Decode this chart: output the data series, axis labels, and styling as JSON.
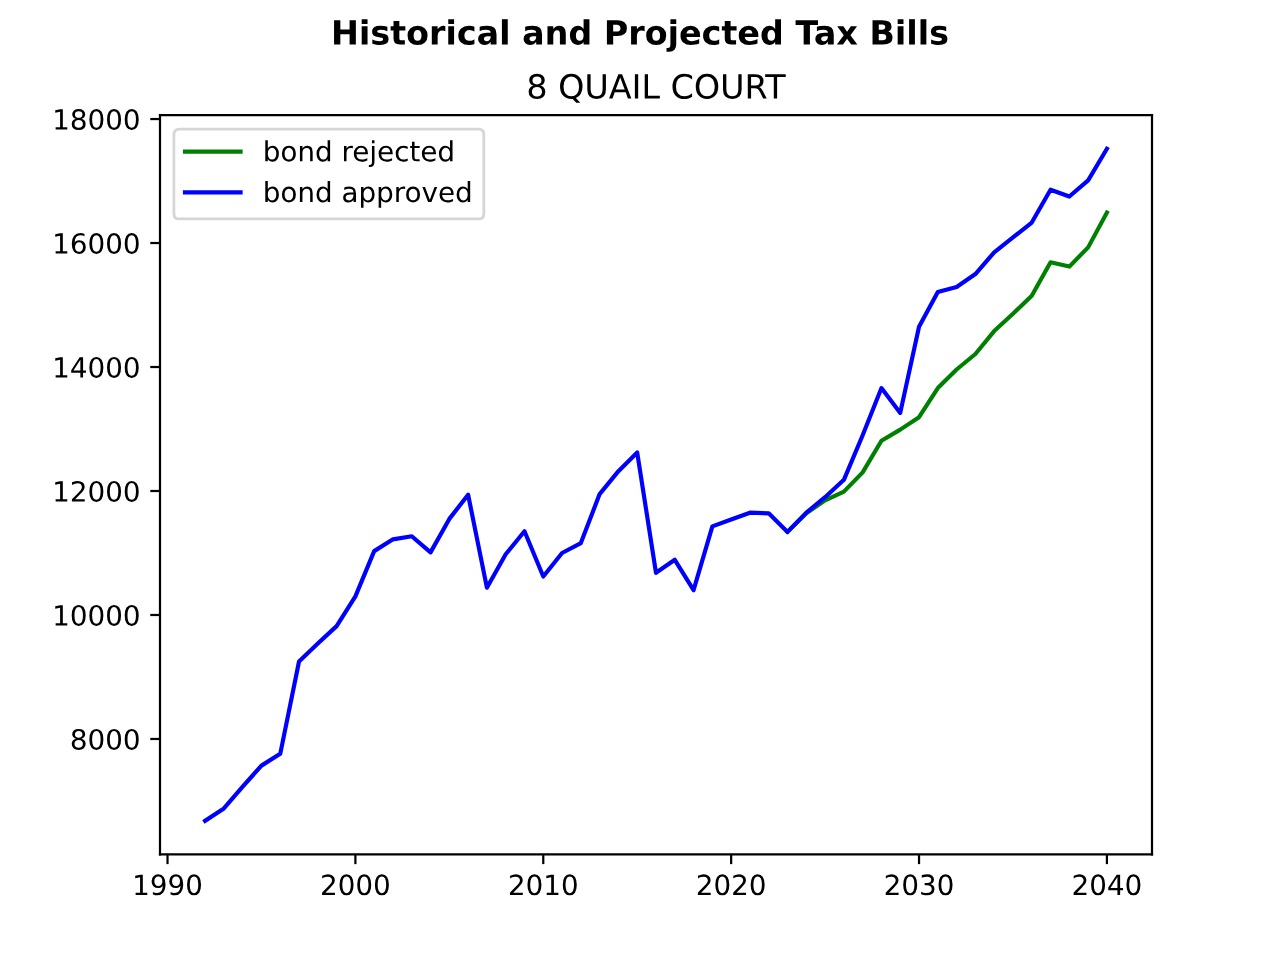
{
  "chart_data": {
    "type": "line",
    "title": "Historical and Projected Tax Bills",
    "subtitle": "8 QUAIL COURT",
    "x": [
      1992,
      1993,
      1994,
      1995,
      1996,
      1997,
      1998,
      1999,
      2000,
      2001,
      2002,
      2003,
      2004,
      2005,
      2006,
      2007,
      2008,
      2009,
      2010,
      2011,
      2012,
      2013,
      2014,
      2015,
      2016,
      2017,
      2018,
      2019,
      2020,
      2021,
      2022,
      2023,
      2024,
      2025,
      2026,
      2027,
      2028,
      2029,
      2030,
      2031,
      2032,
      2033,
      2034,
      2035,
      2036,
      2037,
      2038,
      2039,
      2040
    ],
    "series": [
      {
        "name": "bond rejected",
        "color": "#008000",
        "values": [
          null,
          null,
          null,
          null,
          null,
          null,
          null,
          null,
          null,
          null,
          null,
          null,
          null,
          null,
          null,
          null,
          null,
          null,
          null,
          null,
          null,
          null,
          null,
          null,
          null,
          null,
          null,
          null,
          null,
          null,
          null,
          11340,
          11640,
          11850,
          11990,
          12300,
          12810,
          12990,
          13190,
          13660,
          13960,
          14210,
          14580,
          14860,
          15150,
          15690,
          15620,
          15930,
          16490
        ]
      },
      {
        "name": "bond approved",
        "color": "#0000ff",
        "values": [
          6680,
          6880,
          7230,
          7570,
          7760,
          9250,
          9540,
          9820,
          10300,
          11030,
          11220,
          11270,
          11010,
          11550,
          11940,
          10440,
          10980,
          11350,
          10620,
          11000,
          11160,
          11950,
          12320,
          12620,
          10680,
          10890,
          10400,
          11430,
          11540,
          11650,
          11640,
          11340,
          11650,
          11900,
          12180,
          12900,
          13660,
          13260,
          14650,
          15210,
          15290,
          15500,
          15850,
          16090,
          16330,
          16860,
          16750,
          17010,
          17520
        ]
      }
    ],
    "xlim": [
      1989.6,
      2042.4
    ],
    "xticks": [
      1990,
      2000,
      2010,
      2020,
      2030,
      2040
    ],
    "ylim": [
      6138,
      18062
    ],
    "yticks": [
      8000,
      10000,
      12000,
      14000,
      16000,
      18000
    ],
    "legend": "top left",
    "grid": false
  }
}
